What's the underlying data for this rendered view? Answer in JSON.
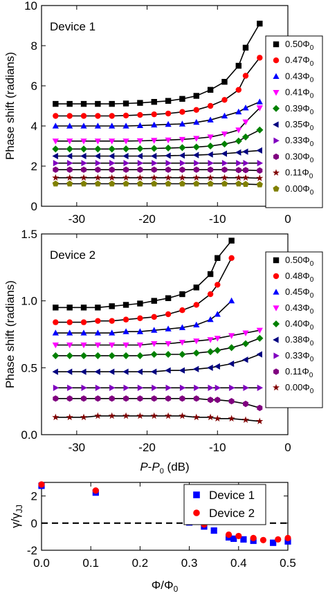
{
  "chart_data": [
    {
      "type": "scatter",
      "panel_label": "Device 1",
      "ylabel": "Phase shift (radians)",
      "xlabel": "",
      "xlim": [
        -35,
        0
      ],
      "ylim": [
        0,
        10
      ],
      "x_ticks": [
        -30,
        -20,
        -10,
        0
      ],
      "y_ticks": [
        0,
        2,
        4,
        6,
        8,
        10
      ],
      "x_tick_labels": [
        "-30",
        "-20",
        "-10",
        "0"
      ],
      "y_tick_labels": [
        "0",
        "2",
        "4",
        "6",
        "8",
        "10"
      ],
      "legend_position": "right",
      "fit_lines": true,
      "x": [
        -33,
        -31,
        -29,
        -27,
        -25,
        -23,
        -21,
        -19,
        -17,
        -15,
        -13,
        -11,
        -9,
        -7,
        -6,
        -4
      ],
      "series": [
        {
          "name": "0.50Φ0",
          "label_main": "0.50Φ",
          "label_sub": "0",
          "marker": "square",
          "color": "#000000",
          "values": [
            5.1,
            5.1,
            5.1,
            5.1,
            5.1,
            5.12,
            5.15,
            5.2,
            5.25,
            5.35,
            5.5,
            5.8,
            6.2,
            7.0,
            7.9,
            9.1
          ]
        },
        {
          "name": "0.47Φ0",
          "label_main": "0.47Φ",
          "label_sub": "0",
          "marker": "circle",
          "color": "#ff0000",
          "values": [
            4.5,
            4.5,
            4.5,
            4.5,
            4.5,
            4.52,
            4.55,
            4.58,
            4.62,
            4.7,
            4.8,
            5.0,
            5.3,
            5.8,
            6.5,
            7.4
          ]
        },
        {
          "name": "0.43Φ0",
          "label_main": "0.43Φ",
          "label_sub": "0",
          "marker": "triangle-up",
          "color": "#0000ff",
          "values": [
            4.0,
            4.0,
            4.0,
            4.0,
            4.0,
            4.0,
            4.02,
            4.05,
            4.08,
            4.1,
            4.18,
            4.3,
            4.5,
            4.7,
            4.9,
            5.2
          ]
        },
        {
          "name": "0.41Φ0",
          "label_main": "0.41Φ",
          "label_sub": "0",
          "marker": "triangle-down",
          "color": "#ff00ff",
          "values": [
            3.25,
            3.25,
            3.25,
            3.25,
            3.25,
            3.25,
            3.26,
            3.28,
            3.3,
            3.33,
            3.38,
            3.45,
            3.6,
            3.8,
            4.2,
            4.9
          ]
        },
        {
          "name": "0.39Φ0",
          "label_main": "0.39Φ",
          "label_sub": "0",
          "marker": "diamond",
          "color": "#008000",
          "values": [
            2.85,
            2.85,
            2.85,
            2.85,
            2.85,
            2.86,
            2.87,
            2.88,
            2.9,
            2.92,
            2.95,
            3.0,
            3.1,
            3.25,
            3.45,
            3.8
          ]
        },
        {
          "name": "0.35Φ0",
          "label_main": "0.35Φ",
          "label_sub": "0",
          "marker": "triangle-left",
          "color": "#000080",
          "values": [
            2.5,
            2.5,
            2.5,
            2.5,
            2.5,
            2.5,
            2.5,
            2.5,
            2.52,
            2.53,
            2.55,
            2.58,
            2.62,
            2.68,
            2.72,
            2.78
          ]
        },
        {
          "name": "0.33Φ0",
          "label_main": "0.33Φ",
          "label_sub": "0",
          "marker": "triangle-right",
          "color": "#8000c0",
          "values": [
            2.15,
            2.15,
            2.15,
            2.15,
            2.15,
            2.15,
            2.15,
            2.15,
            2.15,
            2.15,
            2.15,
            2.15,
            2.15,
            2.15,
            2.15,
            2.15
          ]
        },
        {
          "name": "0.30Φ0",
          "label_main": "0.30Φ",
          "label_sub": "0",
          "marker": "hexagon",
          "color": "#800080",
          "values": [
            1.82,
            1.82,
            1.82,
            1.82,
            1.82,
            1.82,
            1.82,
            1.82,
            1.82,
            1.82,
            1.82,
            1.82,
            1.82,
            1.8,
            1.8,
            1.78
          ]
        },
        {
          "name": "0.11Φ0",
          "label_main": "0.11Φ",
          "label_sub": "0",
          "marker": "star",
          "color": "#800000",
          "values": [
            1.42,
            1.42,
            1.42,
            1.42,
            1.42,
            1.42,
            1.42,
            1.42,
            1.42,
            1.42,
            1.42,
            1.42,
            1.42,
            1.42,
            1.42,
            1.4
          ]
        },
        {
          "name": "0.00Φ0",
          "label_main": "0.00Φ",
          "label_sub": "0",
          "marker": "pentagon",
          "color": "#808000",
          "values": [
            1.12,
            1.12,
            1.12,
            1.12,
            1.12,
            1.12,
            1.12,
            1.12,
            1.12,
            1.12,
            1.12,
            1.12,
            1.12,
            1.12,
            1.1,
            1.08
          ]
        }
      ]
    },
    {
      "type": "scatter",
      "panel_label": "Device 2",
      "ylabel": "Phase shift (radians)",
      "xlabel": "P-P0 (dB)",
      "xlabel_parts": {
        "p1": "P",
        "dash": "-",
        "p2": "P",
        "sub": "0",
        "unit": " (dB)"
      },
      "xlim": [
        -35,
        0
      ],
      "ylim": [
        0,
        1.5
      ],
      "x_ticks": [
        -30,
        -20,
        -10,
        0
      ],
      "y_ticks": [
        0,
        0.5,
        1.0,
        1.5
      ],
      "x_tick_labels": [
        "-30",
        "-20",
        "-10",
        "0"
      ],
      "y_tick_labels": [
        "0.0",
        "0.5",
        "1.0",
        "1.5"
      ],
      "legend_position": "right",
      "fit_lines": true,
      "x": [
        -33,
        -31,
        -29,
        -27,
        -25,
        -23,
        -21,
        -19,
        -17,
        -15,
        -13,
        -11,
        -10,
        -8,
        -6,
        -4
      ],
      "series": [
        {
          "name": "0.50Φ0",
          "label_main": "0.50Φ",
          "label_sub": "0",
          "marker": "square",
          "color": "#000000",
          "values": [
            0.95,
            0.95,
            0.95,
            0.95,
            0.96,
            0.97,
            0.98,
            1.0,
            1.02,
            1.05,
            1.1,
            1.2,
            1.32,
            1.45,
            null,
            null
          ]
        },
        {
          "name": "0.48Φ0",
          "label_main": "0.48Φ",
          "label_sub": "0",
          "marker": "circle",
          "color": "#ff0000",
          "values": [
            0.84,
            0.84,
            0.84,
            0.85,
            0.85,
            0.86,
            0.87,
            0.88,
            0.9,
            0.93,
            0.97,
            1.05,
            1.12,
            1.32,
            null,
            null
          ]
        },
        {
          "name": "0.45Φ0",
          "label_main": "0.45Φ",
          "label_sub": "0",
          "marker": "triangle-up",
          "color": "#0000ff",
          "values": [
            0.76,
            0.76,
            0.76,
            0.76,
            0.76,
            0.77,
            0.77,
            0.78,
            0.79,
            0.8,
            0.82,
            0.86,
            0.9,
            1.0,
            null,
            null
          ]
        },
        {
          "name": "0.43Φ0",
          "label_main": "0.43Φ",
          "label_sub": "0",
          "marker": "triangle-down",
          "color": "#ff00ff",
          "values": [
            0.67,
            0.67,
            0.67,
            0.67,
            0.67,
            0.67,
            0.67,
            0.68,
            0.68,
            0.69,
            0.7,
            0.71,
            0.72,
            0.74,
            0.76,
            0.78
          ]
        },
        {
          "name": "0.40Φ0",
          "label_main": "0.40Φ",
          "label_sub": "0",
          "marker": "diamond",
          "color": "#008000",
          "values": [
            0.59,
            0.59,
            0.59,
            0.59,
            0.59,
            0.59,
            0.59,
            0.6,
            0.6,
            0.6,
            0.61,
            0.62,
            0.63,
            0.65,
            0.68,
            0.72
          ]
        },
        {
          "name": "0.38Φ0",
          "label_main": "0.38Φ",
          "label_sub": "0",
          "marker": "triangle-left",
          "color": "#000080",
          "values": [
            0.47,
            0.47,
            0.47,
            0.47,
            0.47,
            0.47,
            0.47,
            0.47,
            0.48,
            0.48,
            0.49,
            0.5,
            0.51,
            0.53,
            0.56,
            0.6
          ]
        },
        {
          "name": "0.33Φ0",
          "label_main": "0.33Φ",
          "label_sub": "0",
          "marker": "triangle-right",
          "color": "#8000c0",
          "values": [
            0.35,
            0.35,
            0.35,
            0.35,
            0.35,
            0.35,
            0.35,
            0.35,
            0.35,
            0.35,
            0.35,
            0.35,
            0.35,
            0.35,
            0.35,
            0.35
          ]
        },
        {
          "name": "0.11Φ0",
          "label_main": "0.11Φ",
          "label_sub": "0",
          "marker": "hexagon",
          "color": "#800080",
          "values": [
            0.27,
            0.27,
            0.27,
            0.27,
            0.27,
            0.27,
            0.27,
            0.27,
            0.27,
            0.27,
            0.27,
            0.26,
            0.26,
            0.25,
            0.23,
            0.2
          ]
        },
        {
          "name": "0.00Φ0",
          "label_main": "0.00Φ",
          "label_sub": "0",
          "marker": "star",
          "color": "#800000",
          "values": [
            0.13,
            0.13,
            0.13,
            0.14,
            0.14,
            0.14,
            0.14,
            0.14,
            0.14,
            0.14,
            0.13,
            0.13,
            0.12,
            0.12,
            0.11,
            0.1
          ]
        }
      ]
    },
    {
      "type": "scatter",
      "ylabel": "γ/γJJ",
      "ylabel_parts": {
        "main": "γ/γ",
        "sub": "JJ"
      },
      "xlabel": "Φ/Φ0",
      "xlabel_parts": {
        "main": "Φ/Φ",
        "sub": "0"
      },
      "xlim": [
        0,
        0.5
      ],
      "ylim": [
        -2,
        3
      ],
      "x_ticks": [
        0,
        0.1,
        0.2,
        0.3,
        0.4,
        0.5
      ],
      "y_ticks": [
        -2,
        0,
        2
      ],
      "x_tick_labels": [
        "0.0",
        "0.1",
        "0.2",
        "0.3",
        "0.4",
        "0.5"
      ],
      "y_tick_labels": [
        "-2",
        "0",
        "2"
      ],
      "legend_position": "top-right",
      "reference_line": {
        "y": 0,
        "style": "dashed"
      },
      "series": [
        {
          "name": "Device 1",
          "marker": "square",
          "color": "#0000ff",
          "x": [
            0.0,
            0.11,
            0.3,
            0.33,
            0.35,
            0.38,
            0.39,
            0.41,
            0.43,
            0.47,
            0.5
          ],
          "values": [
            2.75,
            2.25,
            0.05,
            -0.25,
            -0.55,
            -1.05,
            -1.15,
            -1.2,
            -1.3,
            -1.45,
            -1.35
          ]
        },
        {
          "name": "Device 2",
          "marker": "circle",
          "color": "#ff0000",
          "x": [
            0.0,
            0.11,
            0.33,
            0.38,
            0.4,
            0.43,
            0.45,
            0.48,
            0.5
          ],
          "values": [
            2.85,
            2.4,
            -0.1,
            -0.85,
            -0.95,
            -1.1,
            -1.25,
            -1.2,
            -1.1
          ]
        }
      ]
    }
  ]
}
